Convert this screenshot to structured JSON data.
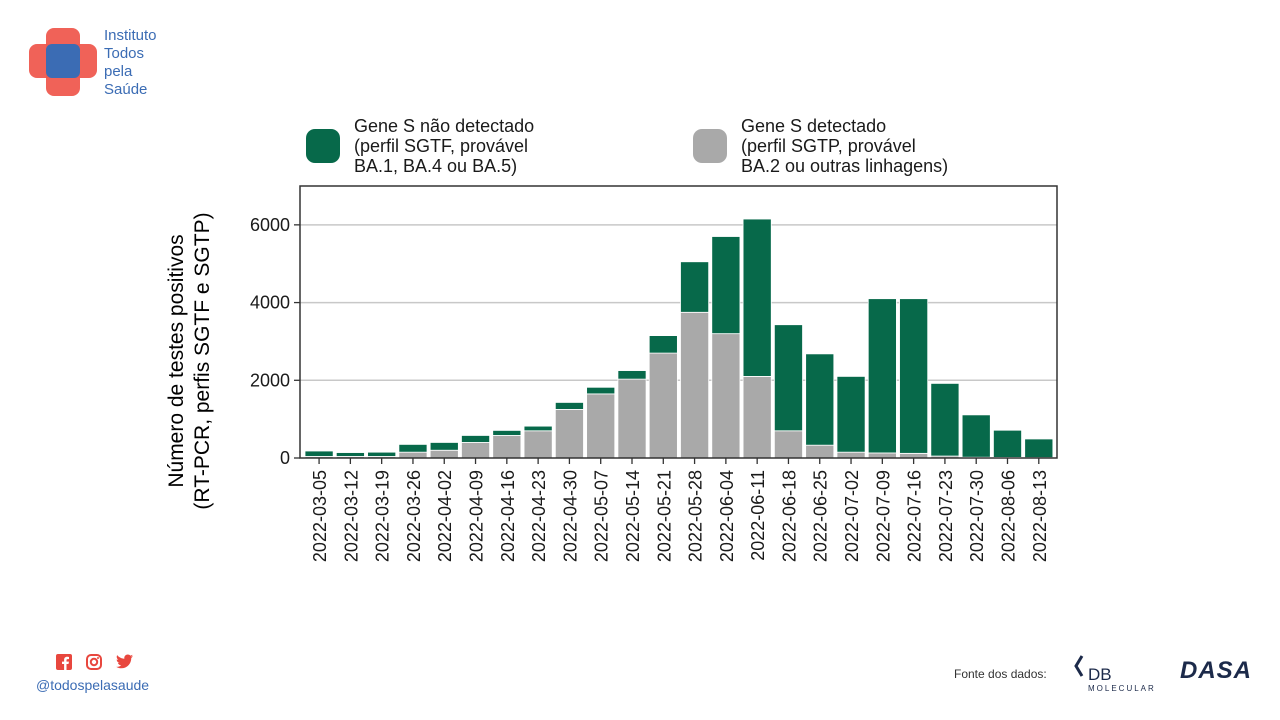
{
  "brand": {
    "name_lines": [
      "Instituto",
      "Todos",
      "pela",
      "Saúde"
    ],
    "handle": "@todospelasaude",
    "social_icons": [
      "facebook-icon",
      "instagram-icon",
      "twitter-icon"
    ],
    "colors": {
      "brand_blue": "#3b6cb4",
      "brand_red": "#ef5a4f",
      "social_red": "#e8473e"
    }
  },
  "source": {
    "label": "Fonte dos dados:",
    "db_name": "DB",
    "db_sub": "MOLECULAR",
    "dasa_name": "DASA"
  },
  "legend": {
    "placement": "top",
    "items": [
      {
        "lines": [
          "Gene S não detectado",
          "(perfil SGTF, provável",
          "BA.1, BA.4 ou BA.5)"
        ],
        "color": "#07694a"
      },
      {
        "lines": [
          "Gene S detectado",
          "(perfil SGTP, provável",
          "BA.2 ou outras linhagens)"
        ],
        "color": "#a9a9a9"
      }
    ]
  },
  "ylabel_lines": [
    "Número de testes positivos",
    "(RT-PCR, perfis SGTF e SGTP)"
  ],
  "chart_data": {
    "type": "bar",
    "stacked": true,
    "categories": [
      "2022-03-05",
      "2022-03-12",
      "2022-03-19",
      "2022-03-26",
      "2022-04-02",
      "2022-04-09",
      "2022-04-16",
      "2022-04-23",
      "2022-04-30",
      "2022-05-07",
      "2022-05-14",
      "2022-05-21",
      "2022-05-28",
      "2022-06-04",
      "2022-06-11",
      "2022-06-18",
      "2022-06-25",
      "2022-07-02",
      "2022-07-09",
      "2022-07-16",
      "2022-07-23",
      "2022-07-30",
      "2022-08-06",
      "2022-08-13"
    ],
    "series": [
      {
        "name": "Gene S detectado (perfil SGTP, provável BA.2 ou outras linhagens)",
        "color": "#a9a9a9",
        "values": [
          40,
          40,
          40,
          150,
          200,
          400,
          580,
          700,
          1250,
          1650,
          2030,
          2700,
          3750,
          3200,
          2100,
          700,
          330,
          150,
          130,
          120,
          50,
          20,
          15,
          10
        ]
      },
      {
        "name": "Gene S não detectado (perfil SGTF, provável BA.1, BA.4 ou BA.5)",
        "color": "#07694a",
        "values": [
          140,
          100,
          110,
          200,
          200,
          180,
          130,
          120,
          180,
          170,
          220,
          450,
          1300,
          2500,
          4050,
          2730,
          2350,
          1950,
          3970,
          3980,
          1870,
          1090,
          700,
          480
        ]
      }
    ],
    "ylim": [
      0,
      7000
    ],
    "yticks": [
      0,
      2000,
      4000,
      6000
    ],
    "grid": true
  }
}
